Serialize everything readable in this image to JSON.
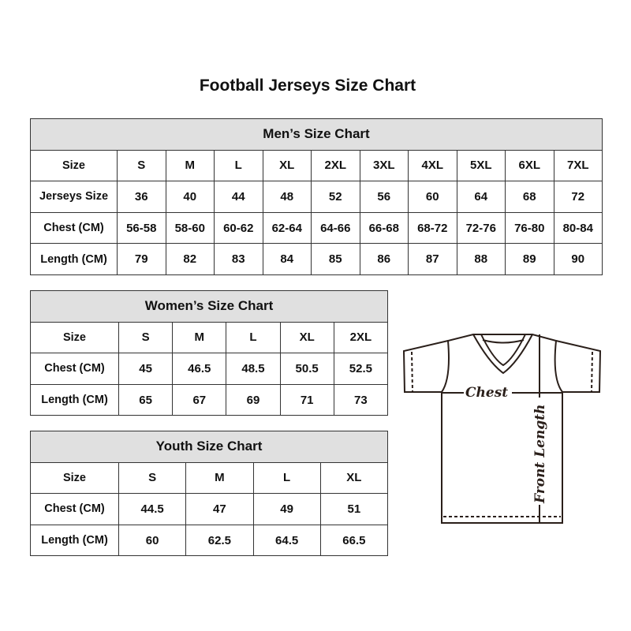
{
  "title": "Football Jerseys Size Chart",
  "men": {
    "header": "Men’s Size Chart",
    "rows": [
      [
        "Size",
        "S",
        "M",
        "L",
        "XL",
        "2XL",
        "3XL",
        "4XL",
        "5XL",
        "6XL",
        "7XL"
      ],
      [
        "Jerseys Size",
        "36",
        "40",
        "44",
        "48",
        "52",
        "56",
        "60",
        "64",
        "68",
        "72"
      ],
      [
        "Chest (CM)",
        "56-58",
        "58-60",
        "60-62",
        "62-64",
        "64-66",
        "66-68",
        "68-72",
        "72-76",
        "76-80",
        "80-84"
      ],
      [
        "Length (CM)",
        "79",
        "82",
        "83",
        "84",
        "85",
        "86",
        "87",
        "88",
        "89",
        "90"
      ]
    ]
  },
  "women": {
    "header": "Women’s Size Chart",
    "rows": [
      [
        "Size",
        "S",
        "M",
        "L",
        "XL",
        "2XL"
      ],
      [
        "Chest (CM)",
        "45",
        "46.5",
        "48.5",
        "50.5",
        "52.5"
      ],
      [
        "Length (CM)",
        "65",
        "67",
        "69",
        "71",
        "73"
      ]
    ]
  },
  "youth": {
    "header": "Youth Size Chart",
    "rows": [
      [
        "Size",
        "S",
        "M",
        "L",
        "XL"
      ],
      [
        "Chest (CM)",
        "44.5",
        "47",
        "49",
        "51"
      ],
      [
        "Length (CM)",
        "60",
        "62.5",
        "64.5",
        "66.5"
      ]
    ]
  },
  "diagram": {
    "chest_label": "Chest",
    "length_label": "Front Length"
  }
}
